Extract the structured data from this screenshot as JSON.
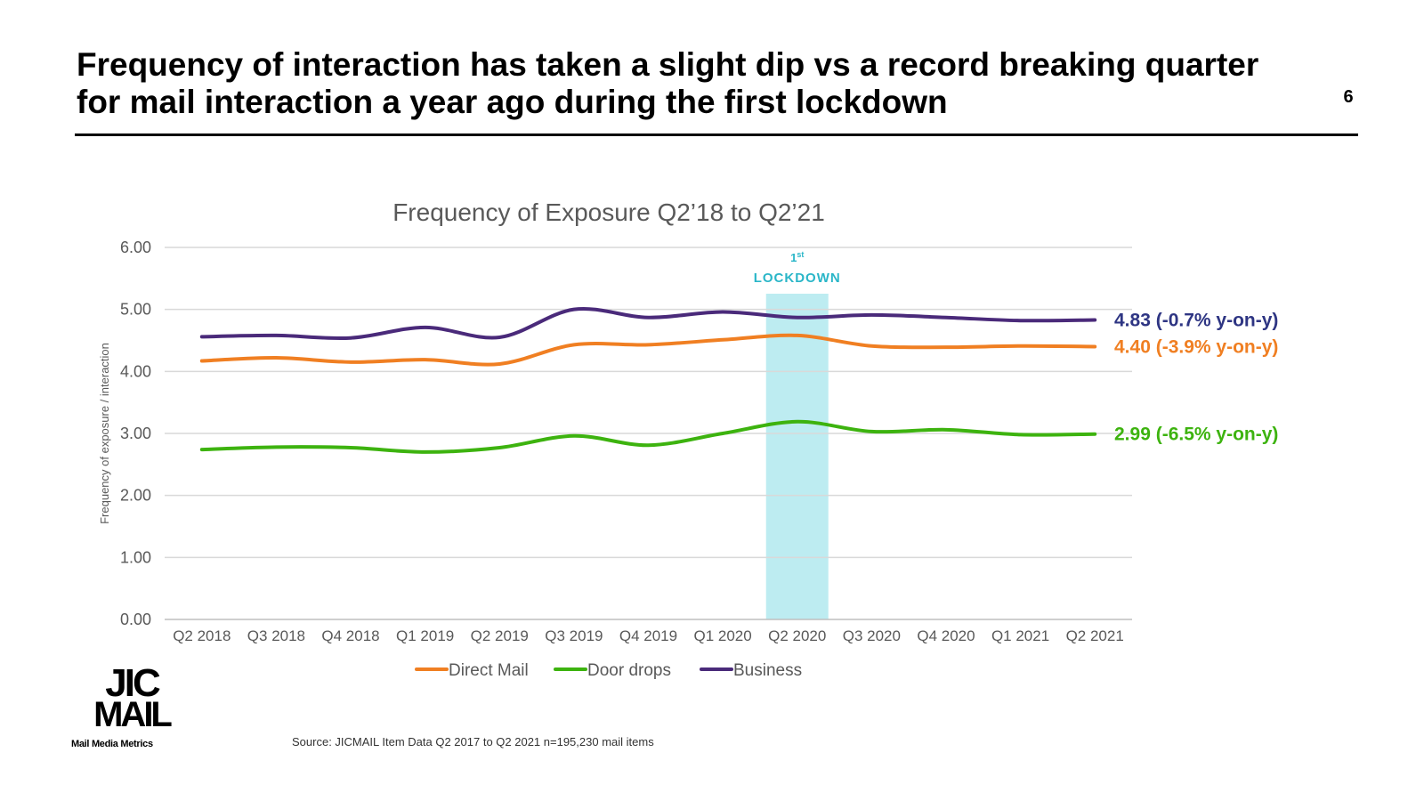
{
  "slide": {
    "title": "Frequency of interaction has taken a slight dip vs a record breaking quarter for mail interaction a year ago during the first lockdown",
    "page_number": "6",
    "source": "Source: JICMAIL Item Data Q2 2017 to Q2 2021 n=195,230 mail items",
    "logo": {
      "line1": "JIC",
      "line2": "MAIL",
      "tagline": "Mail Media Metrics"
    }
  },
  "chart_data": {
    "type": "line",
    "title": "Frequency of Exposure Q2’18 to Q2’21",
    "ylabel": "Frequency of exposure / interaction",
    "xlabel": "",
    "ylim": [
      0,
      6
    ],
    "yticks": [
      "0.00",
      "1.00",
      "2.00",
      "3.00",
      "4.00",
      "5.00",
      "6.00"
    ],
    "grid": true,
    "legend_position": "bottom",
    "categories": [
      "Q2 2018",
      "Q3 2018",
      "Q4 2018",
      "Q1 2019",
      "Q2 2019",
      "Q3 2019",
      "Q4 2019",
      "Q1 2020",
      "Q2 2020",
      "Q3 2020",
      "Q4 2020",
      "Q1 2021",
      "Q2 2021"
    ],
    "series": [
      {
        "name": "Direct Mail",
        "color": "#F07F22",
        "values": [
          4.17,
          4.22,
          4.15,
          4.19,
          4.12,
          4.43,
          4.43,
          4.51,
          4.58,
          4.41,
          4.39,
          4.41,
          4.4
        ],
        "end_label": "4.40 (-3.9% y-on-y)"
      },
      {
        "name": "Door drops",
        "color": "#3DB30F",
        "values": [
          2.74,
          2.78,
          2.77,
          2.7,
          2.77,
          2.96,
          2.81,
          3.0,
          3.19,
          3.03,
          3.06,
          2.98,
          2.99
        ],
        "end_label": "2.99 (-6.5% y-on-y)"
      },
      {
        "name": "Business",
        "color": "#4A2A7A",
        "values": [
          4.56,
          4.58,
          4.54,
          4.71,
          4.55,
          5.0,
          4.87,
          4.96,
          4.87,
          4.91,
          4.87,
          4.82,
          4.83
        ],
        "end_label": "4.83 (-0.7% y-on-y)"
      }
    ],
    "end_label_colors": {
      "Direct Mail": "#F07F22",
      "Door drops": "#3DB30F",
      "Business": "#2E3583"
    },
    "annotation": {
      "category": "Q2 2020",
      "label_sup": "1st",
      "label": "LOCKDOWN",
      "color": "#2AB6C8",
      "band_color": "#BDECF1"
    }
  }
}
